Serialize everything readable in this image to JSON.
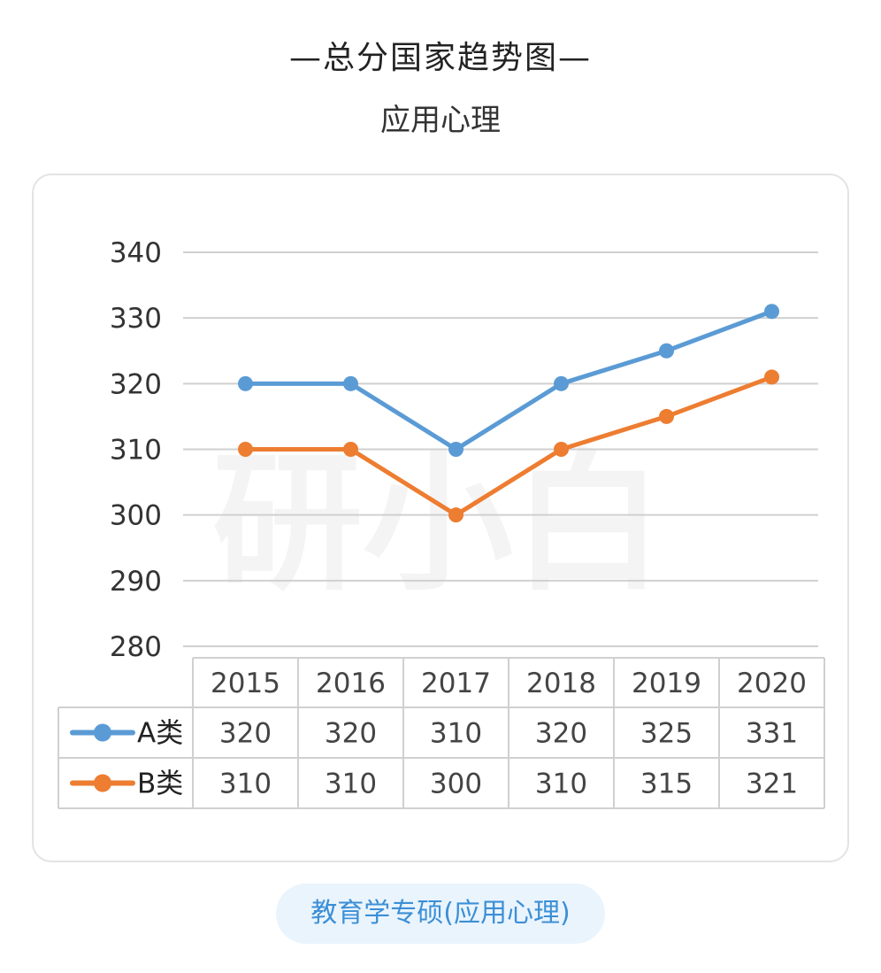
{
  "header": {
    "title": "—总分国家趋势图—",
    "subtitle": "应用心理"
  },
  "chart_data": {
    "type": "line",
    "title": "—总分国家趋势图—",
    "subtitle": "应用心理",
    "categories": [
      "2015",
      "2016",
      "2017",
      "2018",
      "2019",
      "2020"
    ],
    "series": [
      {
        "name": "A类",
        "values": [
          320,
          320,
          310,
          320,
          325,
          331
        ],
        "color": "#5b9bd5"
      },
      {
        "name": "B类",
        "values": [
          310,
          310,
          300,
          310,
          315,
          321
        ],
        "color": "#ed7d31"
      }
    ],
    "ylim": [
      280,
      340
    ],
    "yticks": [
      340,
      330,
      320,
      310,
      300,
      290,
      280
    ],
    "grid": true,
    "data_table": true
  },
  "watermark": {
    "text": "研小白"
  },
  "footer": {
    "label": "教育学专硕(应用心理)"
  },
  "colors": {
    "gridline": "#d0d0d0",
    "table_border": "#d0d0d0",
    "pill_bg": "#eaf4fd",
    "pill_text": "#3c8fd6"
  }
}
